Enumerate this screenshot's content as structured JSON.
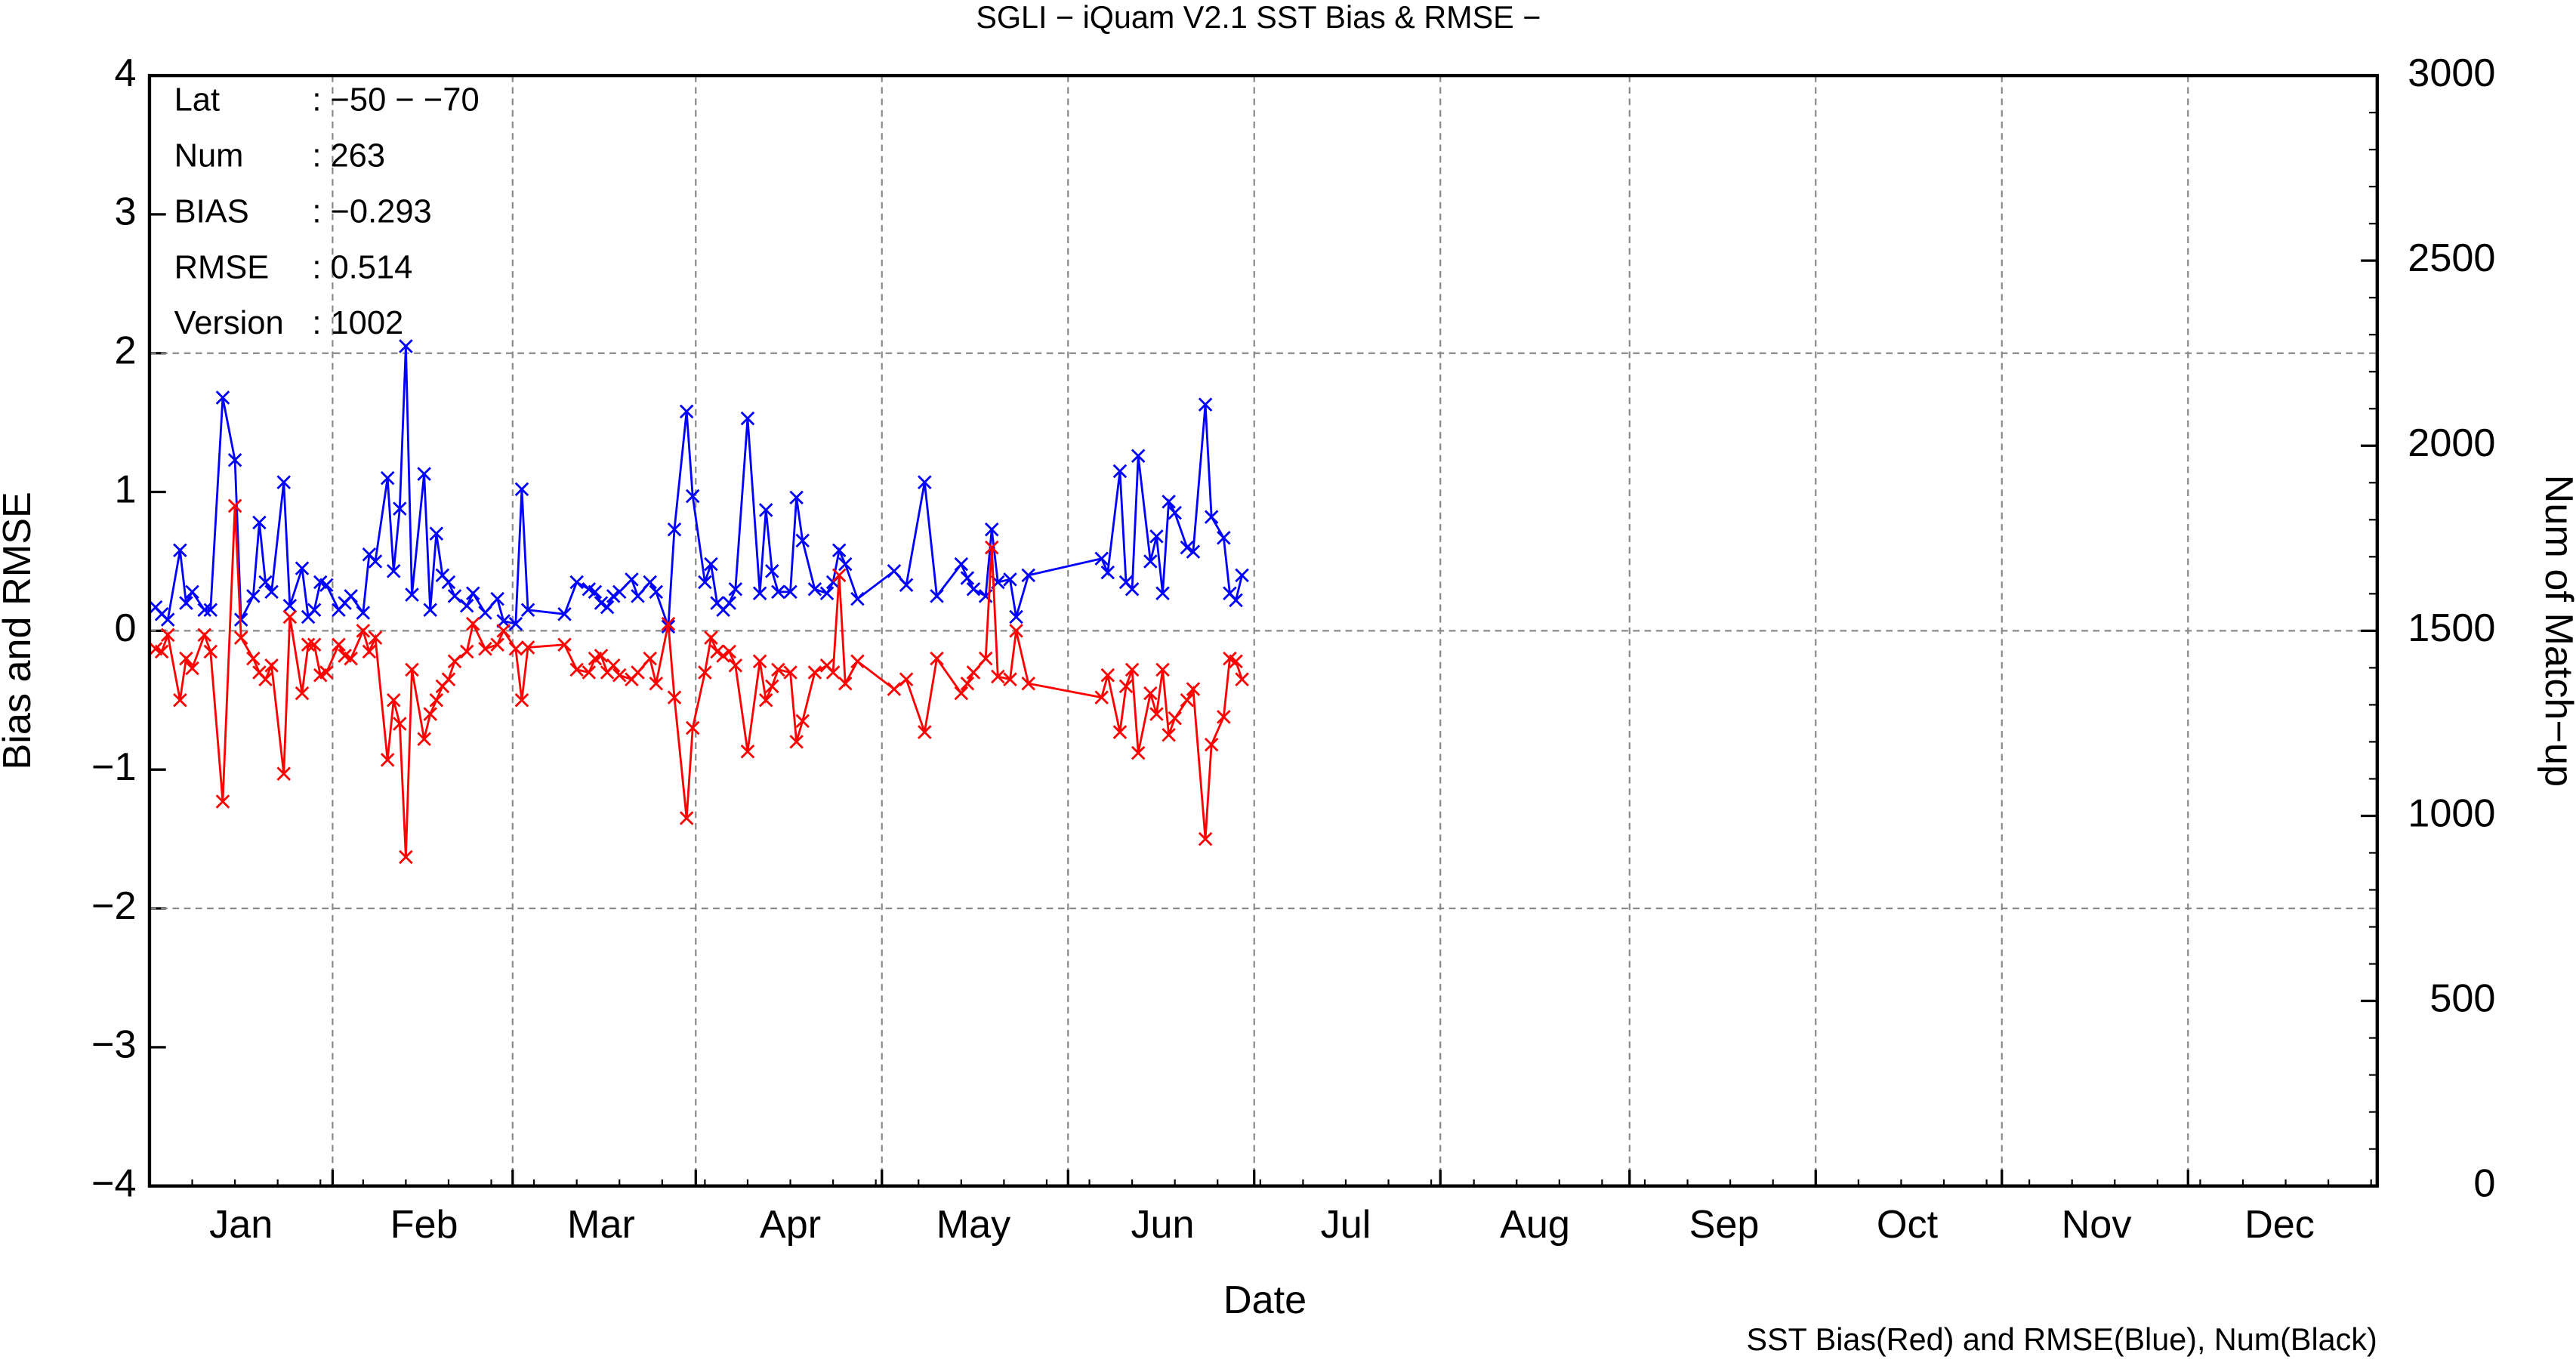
{
  "chart_data": {
    "type": "line",
    "title": "SGLI − iQuam V2.1 SST Bias & RMSE  −",
    "x_label": "Date",
    "y_label": "Bias and RMSE",
    "y2_label": "Num of Match−up",
    "footer": "SST Bias(Red) and RMSE(Blue), Num(Black)",
    "annotations": [
      {
        "key": "Lat",
        "value": ": −50 − −70"
      },
      {
        "key": "Num",
        "value": ": 263"
      },
      {
        "key": "BIAS",
        "value": ": −0.293"
      },
      {
        "key": "RMSE",
        "value": ": 0.514"
      },
      {
        "key": "Version",
        "value": ": 1002"
      }
    ],
    "xlim": [
      1,
      366
    ],
    "xticks": [
      {
        "value": 16,
        "label": "Jan"
      },
      {
        "value": 46,
        "label": "Feb"
      },
      {
        "value": 75,
        "label": "Mar"
      },
      {
        "value": 106,
        "label": "Apr"
      },
      {
        "value": 136,
        "label": "May"
      },
      {
        "value": 167,
        "label": "Jun"
      },
      {
        "value": 197,
        "label": "Jul"
      },
      {
        "value": 228,
        "label": "Aug"
      },
      {
        "value": 259,
        "label": "Sep"
      },
      {
        "value": 289,
        "label": "Oct"
      },
      {
        "value": 320,
        "label": "Nov"
      },
      {
        "value": 350,
        "label": "Dec"
      }
    ],
    "ylim": [
      -4,
      4
    ],
    "yticks": [
      {
        "value": -4,
        "label": "−4"
      },
      {
        "value": -3,
        "label": "−3"
      },
      {
        "value": -2,
        "label": "−2"
      },
      {
        "value": -1,
        "label": "−1"
      },
      0,
      1,
      2,
      3,
      4
    ],
    "y2lim": [
      0,
      3000
    ],
    "y2ticks": [
      0,
      500,
      1000,
      1500,
      2000,
      2500,
      3000
    ],
    "grid": true,
    "x": [
      2,
      3,
      4,
      6,
      7,
      8,
      10,
      11,
      13,
      15,
      16,
      18,
      19,
      20,
      21,
      23,
      24,
      26,
      27,
      28,
      29,
      30,
      32,
      33,
      34,
      36,
      37,
      38,
      40,
      41,
      42,
      43,
      44,
      46,
      47,
      48,
      49,
      50,
      51,
      53,
      54,
      56,
      58,
      59,
      61,
      62,
      63,
      69,
      71,
      73,
      74,
      75,
      76,
      77,
      78,
      80,
      81,
      83,
      84,
      86,
      87,
      89,
      90,
      92,
      93,
      94,
      95,
      96,
      97,
      99,
      101,
      102,
      103,
      104,
      106,
      107,
      108,
      110,
      112,
      113,
      114,
      115,
      117,
      123,
      125,
      128,
      130,
      134,
      135,
      136,
      138,
      139,
      140,
      142,
      143,
      145,
      157,
      158,
      160,
      161,
      162,
      163,
      165,
      166,
      167,
      168,
      169,
      171,
      172,
      174,
      175,
      177,
      178,
      179,
      180
    ],
    "series": [
      {
        "color": "#0000ff",
        "values": [
          0.17,
          0.12,
          0.08,
          0.58,
          0.2,
          0.28,
          0.15,
          0.15,
          1.68,
          1.23,
          0.08,
          0.25,
          0.78,
          0.35,
          0.28,
          1.07,
          0.18,
          0.45,
          0.1,
          0.15,
          0.35,
          0.33,
          0.15,
          0.2,
          0.25,
          0.13,
          0.55,
          0.5,
          1.1,
          0.43,
          0.88,
          2.05,
          0.26,
          1.13,
          0.15,
          0.7,
          0.4,
          0.35,
          0.25,
          0.18,
          0.27,
          0.13,
          0.23,
          0.07,
          0.05,
          1.02,
          0.15,
          0.12,
          0.35,
          0.3,
          0.28,
          0.2,
          0.17,
          0.25,
          0.28,
          0.37,
          0.25,
          0.35,
          0.28,
          0.03,
          0.73,
          1.58,
          0.97,
          0.35,
          0.48,
          0.2,
          0.15,
          0.2,
          0.3,
          1.53,
          0.27,
          0.87,
          0.43,
          0.28,
          0.28,
          0.96,
          0.65,
          0.3,
          0.27,
          0.35,
          0.58,
          0.48,
          0.23,
          0.43,
          0.33,
          1.07,
          0.25,
          0.48,
          0.38,
          0.3,
          0.25,
          0.73,
          0.35,
          0.37,
          0.1,
          0.4,
          0.52,
          0.42,
          1.15,
          0.35,
          0.3,
          1.26,
          0.5,
          0.68,
          0.27,
          0.93,
          0.85,
          0.6,
          0.57,
          1.63,
          0.82,
          0.67,
          0.27,
          0.22,
          0.4
        ]
      },
      {
        "color": "#ff0000",
        "values": [
          -0.13,
          -0.15,
          -0.03,
          -0.5,
          -0.2,
          -0.27,
          -0.03,
          -0.15,
          -1.23,
          0.9,
          -0.05,
          -0.2,
          -0.3,
          -0.35,
          -0.25,
          -1.03,
          0.1,
          -0.45,
          -0.1,
          -0.1,
          -0.32,
          -0.3,
          -0.1,
          -0.18,
          -0.2,
          0.0,
          -0.15,
          -0.05,
          -0.93,
          -0.5,
          -0.67,
          -1.63,
          -0.28,
          -0.78,
          -0.6,
          -0.5,
          -0.4,
          -0.35,
          -0.22,
          -0.15,
          0.05,
          -0.13,
          -0.1,
          0.0,
          -0.13,
          -0.5,
          -0.12,
          -0.1,
          -0.28,
          -0.3,
          -0.2,
          -0.18,
          -0.3,
          -0.25,
          -0.32,
          -0.35,
          -0.3,
          -0.2,
          -0.38,
          0.05,
          -0.48,
          -1.35,
          -0.7,
          -0.3,
          -0.05,
          -0.15,
          -0.18,
          -0.15,
          -0.25,
          -0.87,
          -0.22,
          -0.5,
          -0.4,
          -0.28,
          -0.3,
          -0.8,
          -0.65,
          -0.3,
          -0.25,
          -0.3,
          0.4,
          -0.38,
          -0.22,
          -0.42,
          -0.35,
          -0.73,
          -0.2,
          -0.45,
          -0.38,
          -0.3,
          -0.2,
          0.6,
          -0.33,
          -0.35,
          0.0,
          -0.38,
          -0.48,
          -0.32,
          -0.73,
          -0.4,
          -0.28,
          -0.88,
          -0.45,
          -0.6,
          -0.28,
          -0.75,
          -0.63,
          -0.5,
          -0.42,
          -1.5,
          -0.82,
          -0.62,
          -0.2,
          -0.22,
          -0.35
        ]
      }
    ]
  }
}
